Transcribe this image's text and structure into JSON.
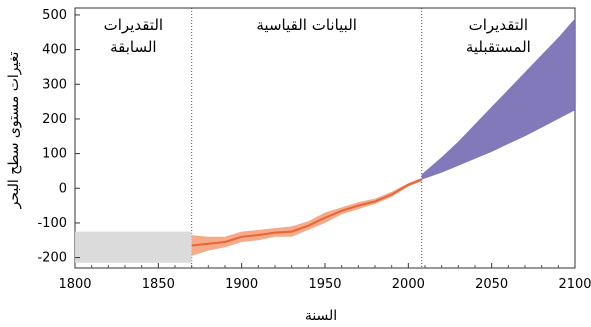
{
  "chart_data": {
    "type": "area",
    "xlabel": "السنة",
    "ylabel": "تغيرات مستوى سطح البحر",
    "xlim": [
      1800,
      2100
    ],
    "ylim": [
      -230,
      520
    ],
    "x_ticks": [
      1800,
      1850,
      1900,
      1950,
      2000,
      2050,
      2100
    ],
    "y_ticks": [
      -200,
      -100,
      0,
      100,
      200,
      300,
      400,
      500
    ],
    "dividers": [
      1870,
      2008
    ],
    "regions": [
      {
        "label_lines": [
          "التقديرات",
          "السابقة"
        ],
        "x_range": [
          1800,
          1870
        ]
      },
      {
        "label_lines": [
          "البيانات القياسية"
        ],
        "x_range": [
          1870,
          2008
        ]
      },
      {
        "label_lines": [
          "التقديرات",
          "المستقبلية"
        ],
        "x_range": [
          2008,
          2100
        ]
      }
    ],
    "series": [
      {
        "kind": "band",
        "color": "#d9d9d9",
        "x": [
          1800,
          1870
        ],
        "upper": [
          -125,
          -125
        ],
        "lower": [
          -215,
          -215
        ]
      },
      {
        "kind": "band",
        "color": "#f4a582",
        "x": [
          1870,
          1880,
          1890,
          1900,
          1910,
          1920,
          1930,
          1940,
          1950,
          1960,
          1970,
          1980,
          1990,
          2000,
          2008
        ],
        "upper": [
          -135,
          -140,
          -140,
          -125,
          -120,
          -115,
          -110,
          -95,
          -70,
          -55,
          -40,
          -30,
          -10,
          15,
          30
        ],
        "lower": [
          -195,
          -180,
          -170,
          -155,
          -150,
          -140,
          -140,
          -120,
          -100,
          -75,
          -60,
          -45,
          -25,
          5,
          20
        ]
      },
      {
        "kind": "line",
        "color": "#e8643c",
        "x": [
          1870,
          1880,
          1890,
          1900,
          1910,
          1920,
          1930,
          1940,
          1950,
          1960,
          1970,
          1980,
          1990,
          2000,
          2008
        ],
        "values": [
          -165,
          -160,
          -155,
          -140,
          -135,
          -128,
          -125,
          -108,
          -85,
          -65,
          -50,
          -38,
          -18,
          10,
          25
        ]
      },
      {
        "kind": "band",
        "color": "#7b72b6",
        "x": [
          2008,
          2020,
          2030,
          2040,
          2050,
          2060,
          2070,
          2080,
          2090,
          2100
        ],
        "upper": [
          40,
          90,
          135,
          185,
          235,
          285,
          335,
          385,
          435,
          490
        ],
        "lower": [
          25,
          45,
          65,
          85,
          105,
          128,
          150,
          175,
          200,
          225
        ]
      }
    ]
  }
}
